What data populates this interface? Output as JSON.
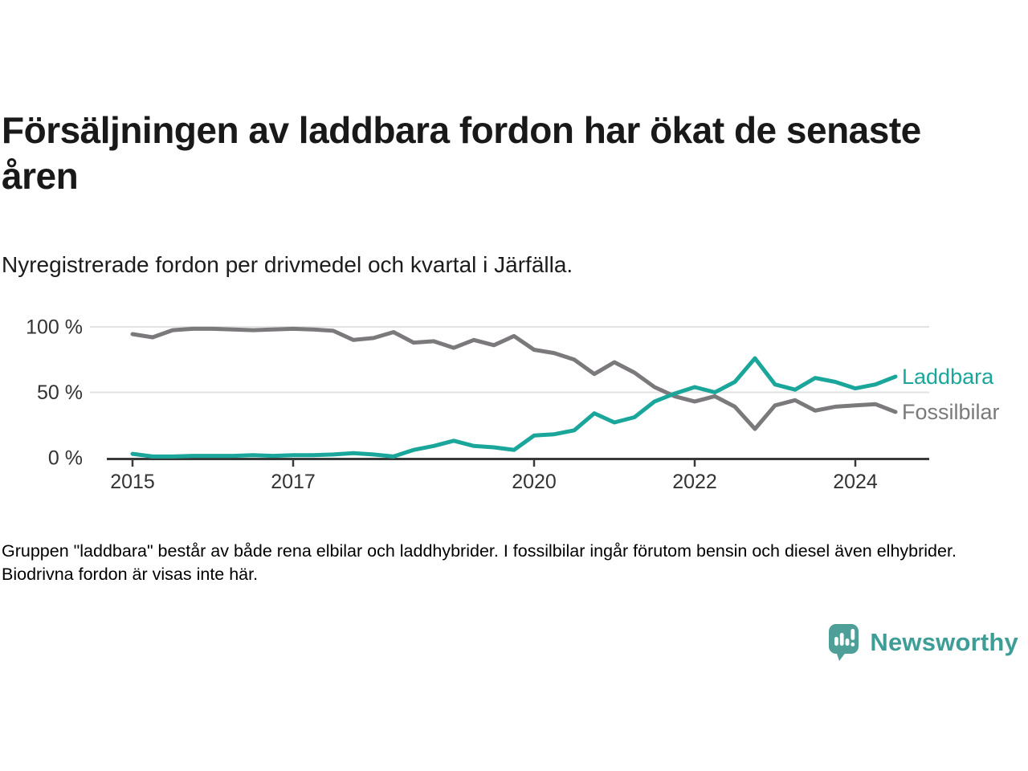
{
  "header": {
    "title": "Försäljningen av laddbara fordon har ökat de senaste åren",
    "subtitle": "Nyregistrerade fordon per drivmedel och kvartal i Järfälla."
  },
  "chart_data": {
    "type": "line",
    "title": "Nyregistrerade fordon per drivmedel och kvartal i Järfälla",
    "x_unit": "quarter",
    "x_start": 2015,
    "x_step_years": 0.25,
    "x_end": 2024.5,
    "x_ticks": [
      {
        "year": 2015,
        "label": "2015"
      },
      {
        "year": 2017,
        "label": "2017"
      },
      {
        "year": 2020,
        "label": "2020"
      },
      {
        "year": 2022,
        "label": "2022"
      },
      {
        "year": 2024,
        "label": "2024"
      }
    ],
    "y_ticks": [
      {
        "value": 0,
        "label": "0 %"
      },
      {
        "value": 50,
        "label": "50 %"
      },
      {
        "value": 100,
        "label": "100 %"
      }
    ],
    "ylim": [
      0,
      100
    ],
    "grid": "horizontal gridlines at 50% and 100%",
    "legend_position": "labels at right end of each line",
    "series": [
      {
        "name": "Laddbara",
        "color": "#1aa69b",
        "values": [
          3,
          1,
          1,
          1.5,
          1.5,
          1.5,
          2,
          1.5,
          2,
          2,
          2.5,
          3.5,
          2.5,
          1,
          6,
          9,
          13,
          9,
          8,
          6,
          17,
          18,
          21,
          34,
          27,
          31,
          43,
          49,
          54,
          50,
          58,
          76,
          56,
          52,
          61,
          58,
          53,
          56,
          62
        ]
      },
      {
        "name": "Fossilbilar",
        "color": "#7b797b",
        "values": [
          94.5,
          92,
          97.5,
          98.5,
          98.5,
          98,
          97.5,
          98,
          98.5,
          98,
          97,
          90,
          91.5,
          96,
          88,
          89,
          84,
          90,
          86,
          93,
          82.5,
          80,
          75,
          64,
          73,
          65,
          54,
          47,
          43,
          47,
          39,
          22,
          40,
          44,
          36,
          39,
          40,
          41,
          35
        ]
      }
    ]
  },
  "footer": {
    "note": "Gruppen \"laddbara\" består av både rena elbilar och laddhybrider. I fossilbilar ingår förutom bensin och diesel även elhybrider. Biodrivna fordon är visas inte här.",
    "brand": "Newsworthy"
  },
  "colors": {
    "accent_teal": "#1aa69b",
    "line_gray": "#7b797b",
    "axis": "#3a3a3a",
    "gridline": "#e2e2e2",
    "tick_text": "#333333",
    "logo_teal": "#4f9f99",
    "brand_text": "#3f9d97"
  }
}
